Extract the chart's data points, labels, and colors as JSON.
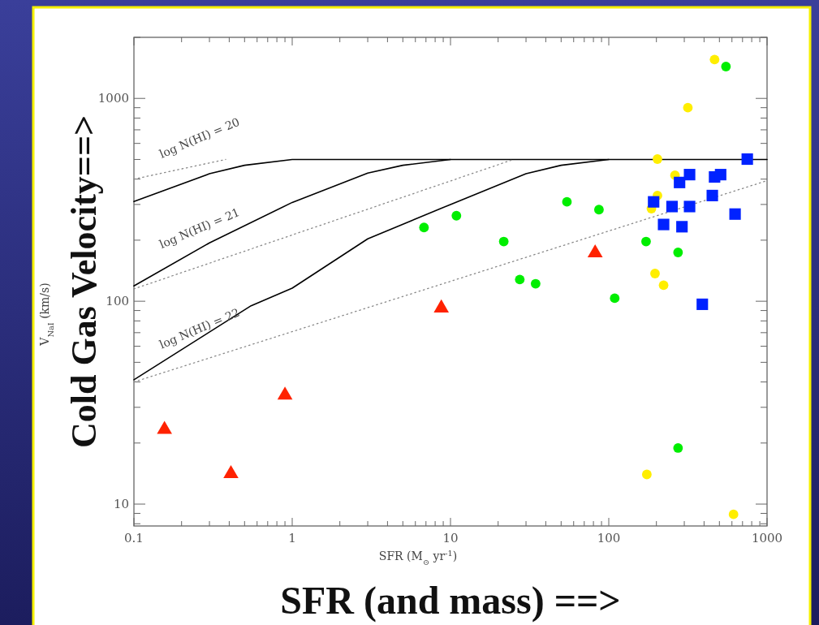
{
  "chart_data": {
    "type": "scatter",
    "xlabel": "SFR (and mass) ==>",
    "ylabel": "Cold Gas Velocity==>",
    "log": "xy",
    "grid": false,
    "xlim": [
      0.1,
      1000
    ],
    "ylim": [
      7.8,
      2000
    ],
    "xticks": [
      0.1,
      {
        "value": 0.2,
        "label": null
      },
      {
        "value": 0.3,
        "label": null
      },
      {
        "value": 0.4,
        "label": null
      },
      {
        "value": 0.5,
        "label": null
      },
      {
        "value": 0.6,
        "label": null
      },
      {
        "value": 0.7,
        "label": null
      },
      {
        "value": 0.8,
        "label": null
      },
      {
        "value": 0.9,
        "label": null
      },
      1,
      {
        "value": 2,
        "label": null
      },
      {
        "value": 3,
        "label": null
      },
      {
        "value": 4,
        "label": null
      },
      {
        "value": 5,
        "label": null
      },
      {
        "value": 6,
        "label": null
      },
      {
        "value": 7,
        "label": null
      },
      {
        "value": 8,
        "label": null
      },
      {
        "value": 9,
        "label": null
      },
      10,
      {
        "value": 20,
        "label": null
      },
      {
        "value": 30,
        "label": null
      },
      {
        "value": 40,
        "label": null
      },
      {
        "value": 50,
        "label": null
      },
      {
        "value": 60,
        "label": null
      },
      {
        "value": 70,
        "label": null
      },
      {
        "value": 80,
        "label": null
      },
      {
        "value": 90,
        "label": null
      },
      100,
      {
        "value": 200,
        "label": null
      },
      {
        "value": 300,
        "label": null
      },
      {
        "value": 400,
        "label": null
      },
      {
        "value": 500,
        "label": null
      },
      {
        "value": 600,
        "label": null
      },
      {
        "value": 700,
        "label": null
      },
      {
        "value": 800,
        "label": null
      },
      {
        "value": 900,
        "label": null
      },
      1000
    ],
    "yticks": [
      {
        "value": 8,
        "label": null
      },
      {
        "value": 9,
        "label": null
      },
      10,
      {
        "value": 20,
        "label": null
      },
      {
        "value": 30,
        "label": null
      },
      {
        "value": 40,
        "label": null
      },
      {
        "value": 50,
        "label": null
      },
      {
        "value": 60,
        "label": null
      },
      {
        "value": 70,
        "label": null
      },
      {
        "value": 80,
        "label": null
      },
      {
        "value": 90,
        "label": null
      },
      100,
      {
        "value": 200,
        "label": null
      },
      {
        "value": 300,
        "label": null
      },
      {
        "value": 400,
        "label": null
      },
      {
        "value": 500,
        "label": null
      },
      {
        "value": 600,
        "label": null
      },
      {
        "value": 700,
        "label": null
      },
      {
        "value": 800,
        "label": null
      },
      {
        "value": 900,
        "label": null
      },
      1000,
      {
        "value": 2000,
        "label": null
      }
    ],
    "series": [
      {
        "type": "line",
        "color": "#000000",
        "line_style": "solid",
        "x": [
          0.1,
          0.3,
          0.5,
          1,
          1000
        ],
        "values": [
          310,
          425,
          468,
          500,
          500
        ]
      },
      {
        "type": "line",
        "color": "#000000",
        "line_style": "solid",
        "x": [
          0.1,
          0.3,
          1,
          3,
          5,
          10
        ],
        "values": [
          119,
          194,
          307,
          428,
          468,
          500
        ]
      },
      {
        "type": "line",
        "color": "#000000",
        "line_style": "solid",
        "x": [
          0.1,
          0.55,
          1,
          3,
          10,
          30,
          50,
          100
        ],
        "values": [
          41,
          95,
          116,
          203,
          300,
          425,
          468,
          500
        ]
      },
      {
        "type": "line",
        "color": "#888888",
        "line_style": "dotted",
        "x": [
          0.1,
          0.38
        ],
        "values": [
          400,
          500
        ]
      },
      {
        "type": "line",
        "color": "#888888",
        "line_style": "dotted",
        "x": [
          0.1,
          25
        ],
        "values": [
          115,
          500
        ]
      },
      {
        "type": "line",
        "color": "#888888",
        "line_style": "dotted",
        "x": [
          0.1,
          1000
        ],
        "values": [
          40,
          393
        ]
      },
      {
        "color": "#ff2200",
        "marker": "triangle",
        "x": [
          0.156,
          0.41,
          0.9,
          8.75,
          82
        ],
        "values": [
          23.3,
          14.1,
          34.4,
          92.5,
          173
        ]
      },
      {
        "color": "#00ee00",
        "marker": "circle",
        "x": [
          6.8,
          10.9,
          21.7,
          27.4,
          34.5,
          54.4,
          86.7,
          109,
          172,
          274,
          550,
          274
        ],
        "values": [
          231,
          264,
          197,
          128,
          122,
          309,
          283,
          103.5,
          197,
          174,
          1435,
          18.9
        ]
      },
      {
        "color": "#ffee00",
        "marker": "circle",
        "x": [
          466,
          316,
          203,
          262,
          203,
          186,
          196,
          222,
          174,
          614
        ],
        "values": [
          1555,
          900,
          502,
          418,
          332,
          286,
          137,
          120,
          14,
          8.9
        ]
      },
      {
        "color": "#0022ff",
        "marker": "square",
        "x": [
          192,
          222,
          251,
          280,
          324,
          290,
          324,
          451,
          466,
          509,
          628,
          750,
          390
        ],
        "values": [
          309,
          239,
          293,
          385,
          421,
          233,
          293,
          332,
          410,
          421,
          269,
          502,
          96.6
        ]
      }
    ],
    "annotations": [
      "V$_{NaI}$ (km/s)",
      "SFR (M$_{⊙}$ yr$^{-1}$)",
      "log N(HI) = 20",
      "log N(HI) = 21",
      "log N(HI) = 22"
    ]
  }
}
